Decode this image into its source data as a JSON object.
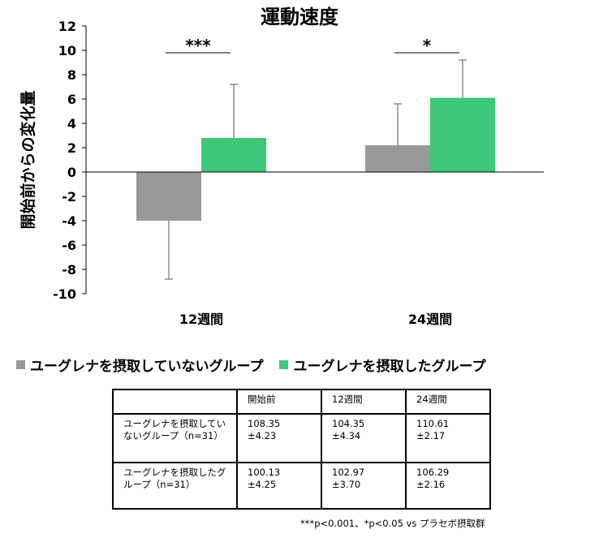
{
  "chart_data": {
    "type": "bar",
    "title": "運動速度",
    "ylabel": "開始前からの変化量",
    "xlabel": "",
    "ylim": [
      -10,
      12
    ],
    "yticks": [
      "12",
      "10",
      "8",
      "6",
      "4",
      "2",
      "0",
      "-2",
      "-4",
      "-6",
      "-8",
      "-10"
    ],
    "categories": [
      "12週間",
      "24週間"
    ],
    "series": [
      {
        "name": "ユーグレナを摂取していないグループ",
        "color": "#999999",
        "values": [
          -4.0,
          2.2
        ],
        "error": [
          4.8,
          3.4
        ]
      },
      {
        "name": "ユーグレナを摂取したグループ",
        "color": "#3CC878",
        "values": [
          2.8,
          6.1
        ],
        "error": [
          4.4,
          3.1
        ]
      }
    ],
    "significance": [
      "***",
      "*"
    ],
    "grid": false,
    "legend_position": "bottom"
  },
  "table": {
    "header": [
      "",
      "開始前",
      "12週間",
      "24週間"
    ],
    "rows": [
      {
        "label": "ユーグレナを摂取していないグループ（n=31）",
        "cells": [
          {
            "mean": "108.35",
            "sd": "±4.23"
          },
          {
            "mean": "104.35",
            "sd": "±4.34"
          },
          {
            "mean": "110.61",
            "sd": "±2.17"
          }
        ]
      },
      {
        "label": "ユーグレナを摂取したグループ（n=31）",
        "cells": [
          {
            "mean": "100.13",
            "sd": "±4.25"
          },
          {
            "mean": "102.97",
            "sd": "±3.70"
          },
          {
            "mean": "106.29",
            "sd": "±2.16"
          }
        ]
      }
    ]
  },
  "footnote": "***p<0.001、*p<0.05 vs プラセボ摂取群"
}
